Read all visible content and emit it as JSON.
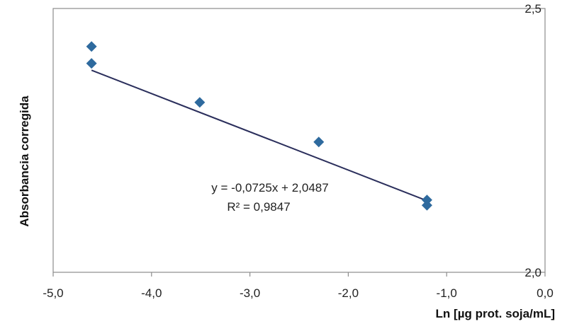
{
  "chart_data": {
    "type": "scatter",
    "title": "",
    "xlabel": "Ln [µg prot. soja/mL]",
    "ylabel": "Absorbancia corregida",
    "xlim": [
      -5.0,
      0.0
    ],
    "ylim": [
      2.0,
      2.5
    ],
    "x_ticks": [
      "-5,0",
      "-4,0",
      "-3,0",
      "-2,0",
      "-1,0",
      "0,0"
    ],
    "y_ticks": [
      "2,0",
      "2,5"
    ],
    "y_axis_position": "right",
    "grid": false,
    "legend": "none",
    "points": [
      {
        "x": -4.61,
        "y": 2.428
      },
      {
        "x": -4.61,
        "y": 2.396
      },
      {
        "x": -3.51,
        "y": 2.322
      },
      {
        "x": -2.3,
        "y": 2.247
      },
      {
        "x": -1.2,
        "y": 2.137
      },
      {
        "x": -1.2,
        "y": 2.127
      }
    ],
    "trendline": {
      "slope": -0.0725,
      "intercept": 2.0487,
      "x_range": [
        -4.61,
        -1.2
      ],
      "equation": "y = -0,0725x + 2,0487",
      "r_squared": "R² = 0,9847"
    },
    "colors": {
      "marker": "#2E6A9E",
      "line": "#2B2F5C",
      "frame": "#8C8C8C"
    }
  }
}
